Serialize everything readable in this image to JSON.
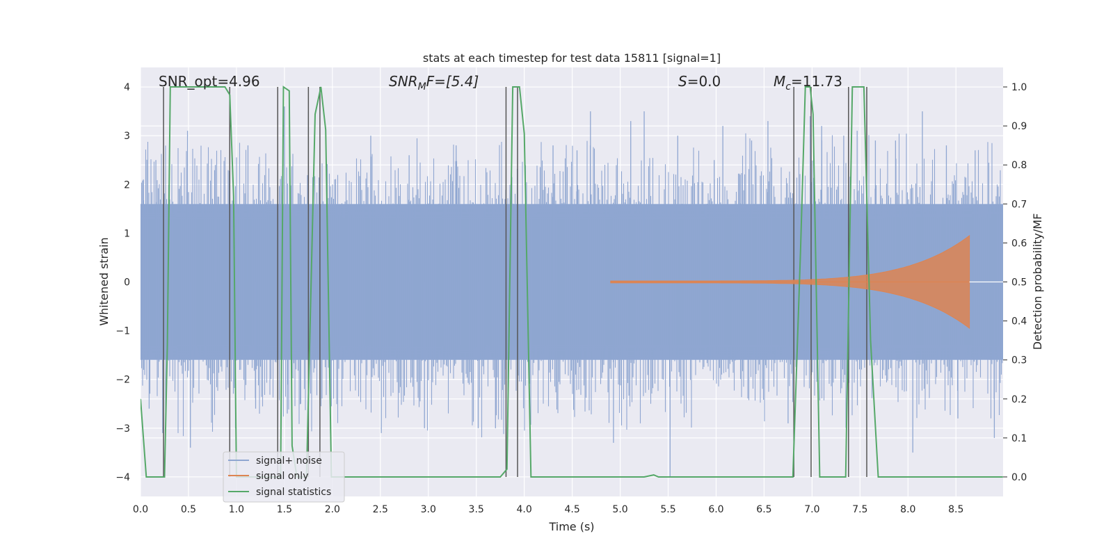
{
  "chart_data": {
    "type": "line",
    "title": "stats at each timestep for test data 15811 [signal=1]",
    "xlabel": "Time (s)",
    "ylabel_left": "Whitened strain",
    "ylabel_right": "Detection probability/MF",
    "xlim": [
      0.0,
      8.9912
    ],
    "ylim_left": [
      -4.4,
      4.4
    ],
    "ylim_right": [
      -0.05,
      1.05
    ],
    "x_ticks": [
      "0.0",
      "0.5",
      "1.0",
      "1.5",
      "2.0",
      "2.5",
      "3.0",
      "3.5",
      "4.0",
      "4.5",
      "5.0",
      "5.5",
      "6.0",
      "6.5",
      "7.0",
      "7.5",
      "8.0",
      "8.5"
    ],
    "y_ticks_left": [
      "−4",
      "−3",
      "−2",
      "−1",
      "0",
      "1",
      "2",
      "3",
      "4"
    ],
    "y_ticks_right": [
      "0.0",
      "0.1",
      "0.2",
      "0.3",
      "0.4",
      "0.5",
      "0.6",
      "0.7",
      "0.8",
      "0.9",
      "1.0"
    ],
    "grid": true,
    "legend_position": "lower-left",
    "annotations": {
      "snr_opt": "SNR_opt=4.96",
      "snr_mf_main": "SNR",
      "snr_mf_sub": "M",
      "snr_mf_tail": "F=[5.4]",
      "s_main": "S",
      "s_tail": "=0.0",
      "mc_main": "M",
      "mc_sub": "c",
      "mc_tail": "=11.73"
    },
    "series": [
      {
        "name": "signal+ noise",
        "color": "#8fa6d1",
        "axis": "left",
        "description_of_values": "whitened strain, noise dominated",
        "band_low": -1.6,
        "band_high": 1.6,
        "peak_samples": [
          [
            0.03,
            2.1
          ],
          [
            0.09,
            -2.6
          ],
          [
            0.16,
            2.5
          ],
          [
            0.23,
            -3.1
          ],
          [
            0.28,
            1.5
          ],
          [
            0.49,
            3.1
          ],
          [
            0.52,
            -3.4
          ],
          [
            0.78,
            2.4
          ],
          [
            0.93,
            2.7
          ],
          [
            0.99,
            -3.0
          ],
          [
            1.12,
            2.8
          ],
          [
            1.2,
            -2.6
          ],
          [
            1.5,
            3.6
          ],
          [
            1.53,
            -2.7
          ],
          [
            1.67,
            -2.5
          ],
          [
            1.75,
            3.5
          ],
          [
            1.98,
            -3.1
          ],
          [
            2.4,
            3.0
          ],
          [
            2.51,
            -3.1
          ],
          [
            2.8,
            2.6
          ],
          [
            2.96,
            -3.0
          ],
          [
            3.29,
            2.8
          ],
          [
            3.52,
            -3.0
          ],
          [
            3.7,
            -3.0
          ],
          [
            3.8,
            1.7
          ],
          [
            4.3,
            2.8
          ],
          [
            4.55,
            2.7
          ],
          [
            4.69,
            3.5
          ],
          [
            4.93,
            -3.3
          ],
          [
            5.11,
            3.3
          ],
          [
            5.25,
            3.5
          ],
          [
            5.52,
            -4.0
          ],
          [
            5.6,
            3.0
          ],
          [
            5.98,
            2.5
          ],
          [
            6.07,
            3.2
          ],
          [
            6.25,
            2.2
          ],
          [
            6.37,
            2.9
          ],
          [
            6.54,
            3.3
          ],
          [
            6.75,
            -2.9
          ],
          [
            6.98,
            3.4
          ],
          [
            7.1,
            3.2
          ],
          [
            7.33,
            3.0
          ],
          [
            7.47,
            3.1
          ],
          [
            7.66,
            2.9
          ],
          [
            7.87,
            2.9
          ],
          [
            8.05,
            -3.5
          ],
          [
            8.15,
            3.5
          ],
          [
            8.4,
            2.8
          ],
          [
            8.52,
            -2.8
          ],
          [
            8.7,
            2.7
          ],
          [
            8.9,
            -3.2
          ]
        ]
      },
      {
        "name": "signal only",
        "color": "#dd8452",
        "axis": "left",
        "chirp": {
          "start": 4.9,
          "end": 8.64,
          "amp_start": 0.02,
          "amp_peak": 0.95,
          "merger": 8.64
        }
      },
      {
        "name": "signal statistics",
        "color": "#55a868",
        "axis": "right",
        "x": [
          0.0,
          0.06,
          0.25,
          0.28,
          0.31,
          0.88,
          0.93,
          0.97,
          1.0,
          1.42,
          1.46,
          1.49,
          1.55,
          1.58,
          1.63,
          1.73,
          1.82,
          1.88,
          1.93,
          1.99,
          3.75,
          3.82,
          3.88,
          3.95,
          4.0,
          4.07,
          5.25,
          5.35,
          5.4,
          6.8,
          6.88,
          6.93,
          6.98,
          7.01,
          7.08,
          7.35,
          7.42,
          7.48,
          7.54,
          7.61,
          7.69,
          8.99
        ],
        "y": [
          0.2,
          0.0,
          0.0,
          0.34,
          1.0,
          1.0,
          0.98,
          0.72,
          0.0,
          0.0,
          0.0,
          1.0,
          0.99,
          0.08,
          0.0,
          0.0,
          0.93,
          1.0,
          0.89,
          0.0,
          0.0,
          0.02,
          1.0,
          1.0,
          0.88,
          0.0,
          0.0,
          0.005,
          0.0,
          0.0,
          0.58,
          1.0,
          1.0,
          0.93,
          0.0,
          0.0,
          1.0,
          1.0,
          1.0,
          0.35,
          0.0,
          0.0
        ]
      }
    ],
    "vlines_x": [
      0.24,
      0.93,
      1.43,
      1.75,
      1.87,
      3.81,
      3.93,
      6.81,
      6.99,
      7.38,
      7.57
    ]
  }
}
